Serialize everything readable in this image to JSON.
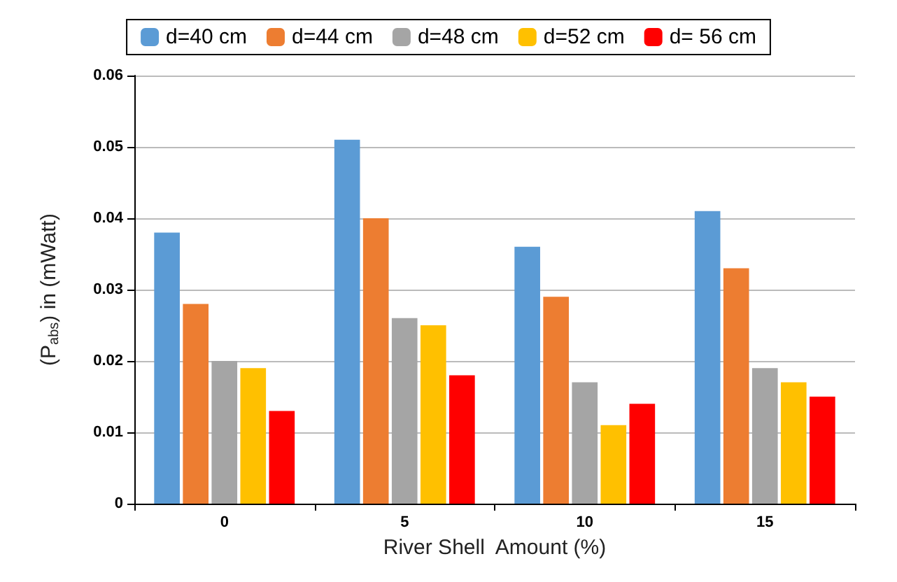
{
  "chart_data": {
    "type": "bar",
    "xlabel": "River Shell  Amount (%)",
    "ylabel": "(P$_{abs}$) in (mWatt)",
    "categories": [
      "0",
      "5",
      "10",
      "15"
    ],
    "series": [
      {
        "name": "d=40 cm",
        "color": "#5b9bd5",
        "values": [
          0.038,
          0.051,
          0.036,
          0.041
        ]
      },
      {
        "name": "d=44 cm",
        "color": "#ed7d31",
        "values": [
          0.028,
          0.04,
          0.029,
          0.033
        ]
      },
      {
        "name": "d=48 cm",
        "color": "#a5a5a5",
        "values": [
          0.02,
          0.026,
          0.017,
          0.019
        ]
      },
      {
        "name": "d=52 cm",
        "color": "#ffc000",
        "values": [
          0.019,
          0.025,
          0.011,
          0.017
        ]
      },
      {
        "name": "d= 56 cm",
        "color": "#ff0000",
        "values": [
          0.013,
          0.018,
          0.014,
          0.015
        ]
      }
    ],
    "ylim": [
      0,
      0.06
    ],
    "yticks": [
      0,
      0.01,
      0.02,
      0.03,
      0.04,
      0.05,
      0.06
    ],
    "grid": "y",
    "legend": "top"
  }
}
